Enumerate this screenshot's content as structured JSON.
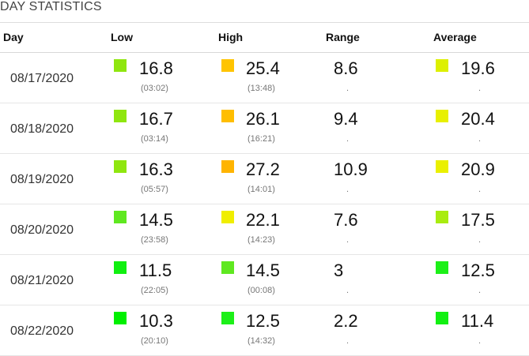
{
  "section_title": "DAY STATISTICS",
  "headers": {
    "day": "Day",
    "low": "Low",
    "high": "High",
    "range": "Range",
    "average": "Average"
  },
  "rows": [
    {
      "day": "08/17/2020",
      "low": "16.8",
      "low_time": "(03:02)",
      "low_color": "#8fe60f",
      "high": "25.4",
      "high_time": "(13:48)",
      "high_color": "#ffc400",
      "range": "8.6",
      "range_sub": ".",
      "avg": "19.6",
      "avg_sub": ".",
      "avg_color": "#ddf000"
    },
    {
      "day": "08/18/2020",
      "low": "16.7",
      "low_time": "(03:14)",
      "low_color": "#8fe60f",
      "high": "26.1",
      "high_time": "(16:21)",
      "high_color": "#ffbe00",
      "range": "9.4",
      "range_sub": ".",
      "avg": "20.4",
      "avg_sub": ".",
      "avg_color": "#e8f000"
    },
    {
      "day": "08/19/2020",
      "low": "16.3",
      "low_time": "(05:57)",
      "low_color": "#8fe60f",
      "high": "27.2",
      "high_time": "(14:01)",
      "high_color": "#ffb400",
      "range": "10.9",
      "range_sub": ".",
      "avg": "20.9",
      "avg_sub": ".",
      "avg_color": "#eaf000"
    },
    {
      "day": "08/20/2020",
      "low": "14.5",
      "low_time": "(23:58)",
      "low_color": "#5fe820",
      "high": "22.1",
      "high_time": "(14:23)",
      "high_color": "#f0ee00",
      "range": "7.6",
      "range_sub": ".",
      "avg": "17.5",
      "avg_sub": ".",
      "avg_color": "#a9ec10"
    },
    {
      "day": "08/21/2020",
      "low": "11.5",
      "low_time": "(22:05)",
      "low_color": "#10f010",
      "high": "14.5",
      "high_time": "(00:08)",
      "high_color": "#5fe820",
      "range": "3",
      "range_sub": ".",
      "avg": "12.5",
      "avg_sub": ".",
      "avg_color": "#1cf018"
    },
    {
      "day": "08/22/2020",
      "low": "10.3",
      "low_time": "(20:10)",
      "low_color": "#00f000",
      "high": "12.5",
      "high_time": "(14:32)",
      "high_color": "#1cf018",
      "range": "2.2",
      "range_sub": ".",
      "avg": "11.4",
      "avg_sub": ".",
      "avg_color": "#12f012"
    }
  ]
}
